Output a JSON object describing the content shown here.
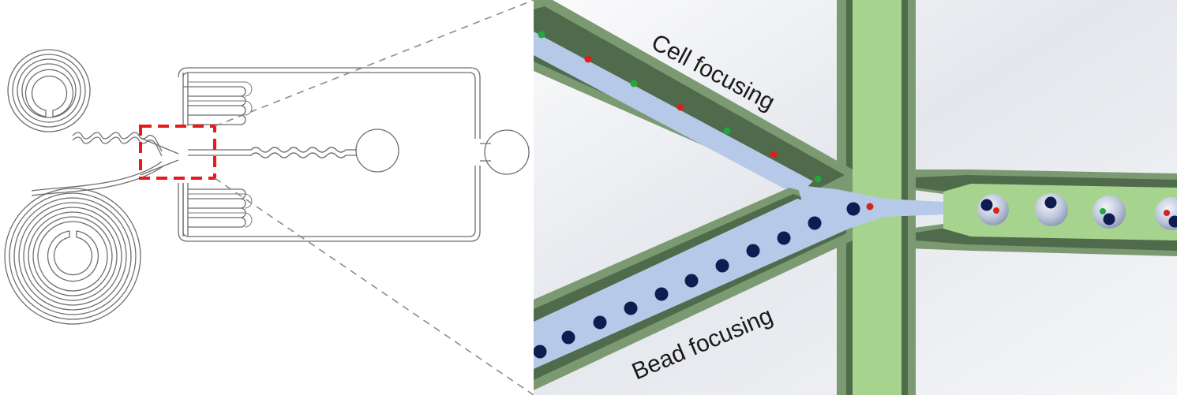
{
  "figure": {
    "labels": {
      "cell_focusing": "Cell focusing",
      "bead_focusing": "Bead focusing"
    },
    "colors": {
      "channel_wall": "#7b9a72",
      "channel_wall_dark": "#4f6b4b",
      "oil_fill": "#a6d38e",
      "aqueous_fill": "#b7c9e8",
      "bead": "#0f1c50",
      "cell_red": "#d8221f",
      "cell_green": "#22a83a",
      "highlight_box": "#e8191c",
      "background_gradient_light": "#f6f7f9",
      "background_gradient_dark": "#d6dae0"
    },
    "icons": {
      "chip_layout": "microfluidic-chip-outline",
      "zoom_box": "dashed-zoom-region",
      "droplet": "encapsulated-droplet"
    }
  }
}
